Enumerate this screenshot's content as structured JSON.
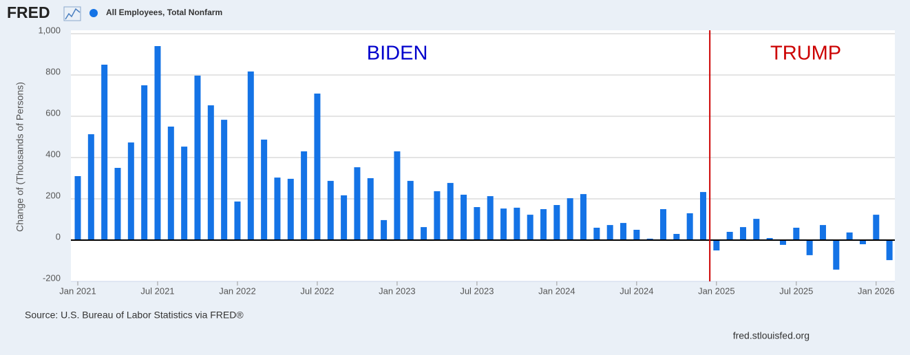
{
  "header": {
    "logo": "FRED"
  },
  "chart_data": {
    "type": "bar",
    "series": [
      {
        "name": "All Employees, Total Nonfarm",
        "color": "#1473e6",
        "values": [
          310,
          513,
          850,
          350,
          473,
          750,
          940,
          550,
          453,
          797,
          653,
          583,
          187,
          817,
          487,
          303,
          297,
          430,
          710,
          287,
          217,
          353,
          300,
          97,
          430,
          287,
          63,
          237,
          277,
          220,
          160,
          213,
          153,
          157,
          123,
          150,
          170,
          203,
          223,
          60,
          73,
          83,
          50,
          7,
          150,
          30,
          130,
          233,
          -50,
          40,
          63,
          103,
          10,
          -23,
          60,
          -73,
          73,
          -143,
          37,
          -20,
          123,
          -97
        ]
      }
    ],
    "categories": [
      "Jan 2021",
      null,
      null,
      null,
      null,
      null,
      "Jul 2021",
      null,
      null,
      null,
      null,
      null,
      "Jan 2022",
      null,
      null,
      null,
      null,
      null,
      "Jul 2022",
      null,
      null,
      null,
      null,
      null,
      "Jan 2023",
      null,
      null,
      null,
      null,
      null,
      "Jul 2023",
      null,
      null,
      null,
      null,
      null,
      "Jan 2024",
      null,
      null,
      null,
      null,
      null,
      "Jul 2024",
      null,
      null,
      null,
      null,
      null,
      "Jan 2025",
      null,
      null,
      null,
      null,
      null,
      "Jul 2025",
      null,
      null,
      null,
      null,
      null,
      "Jan 2026",
      null
    ],
    "ylabel": "Change of (Thousands of Persons)",
    "ylim": [
      -200,
      1000
    ],
    "yticks": [
      -200,
      0,
      200,
      400,
      600,
      800,
      {
        "value": 1000,
        "label": "1,000"
      }
    ],
    "grid": true,
    "annotations": [
      {
        "text": "BIDEN",
        "color": "#0000cc"
      },
      {
        "text": "TRUMP",
        "color": "#cc0000"
      }
    ],
    "source": "Source: U.S. Bureau of Labor Statistics via FRED®"
  },
  "footer": {
    "url": "fred.stlouisfed.org"
  }
}
